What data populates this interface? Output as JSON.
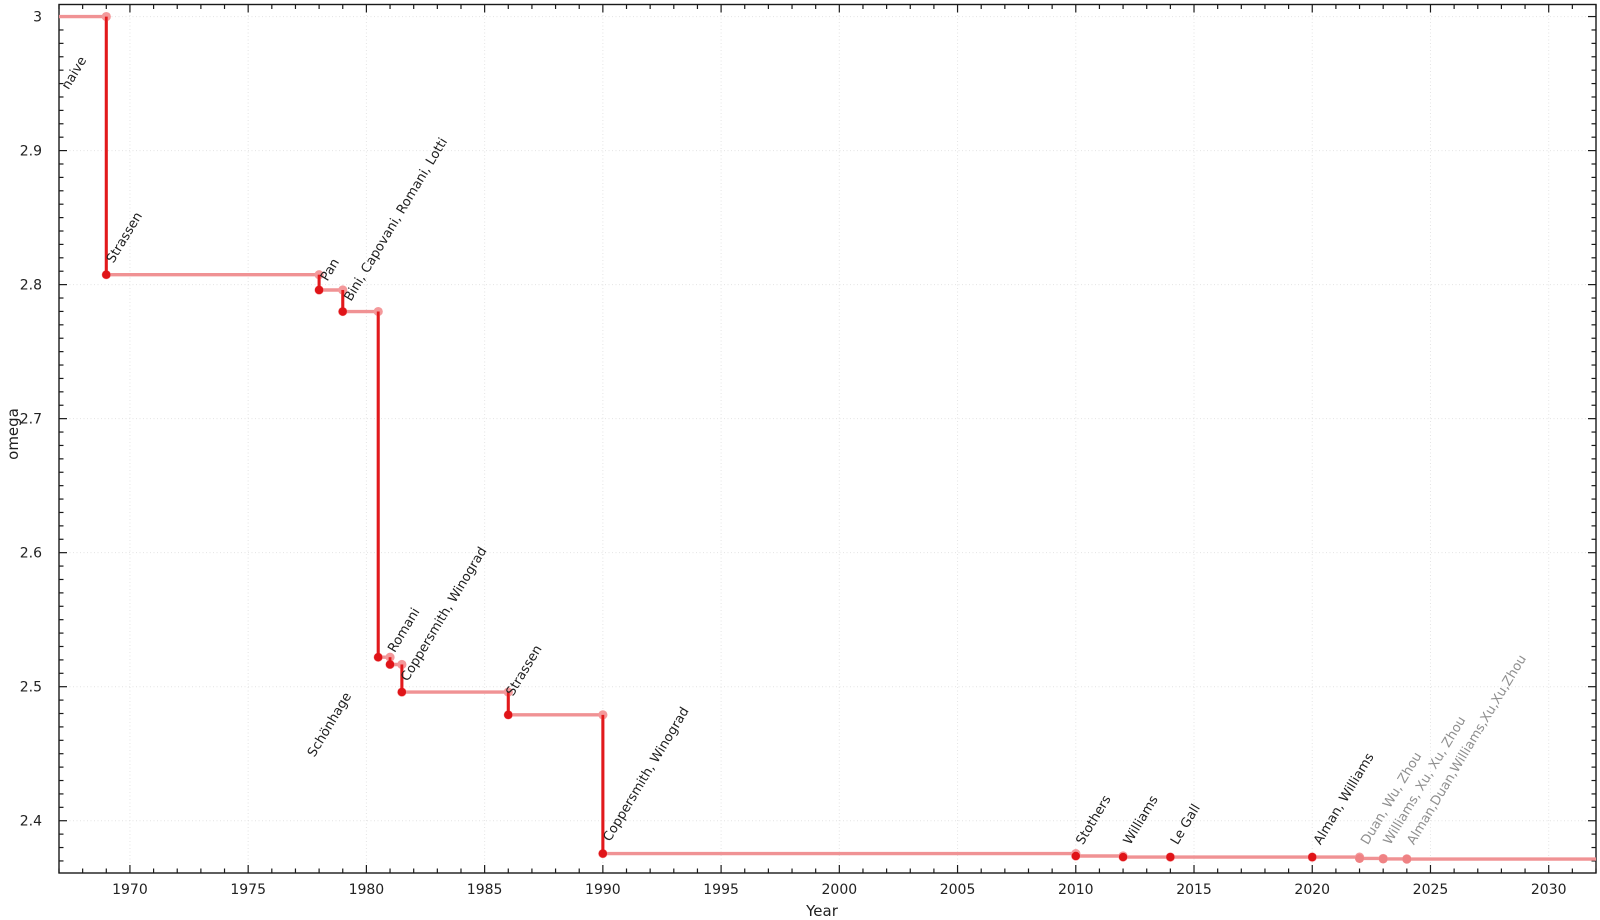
{
  "chart_data": {
    "type": "line",
    "subtype": "step-post",
    "title": "",
    "xlabel": "Year",
    "ylabel": "omega",
    "xlim": [
      1967,
      2032
    ],
    "ylim": [
      2.361,
      3.009
    ],
    "grid": "dotted-major",
    "legend": "none",
    "x_ticks": {
      "major_values": [
        1970,
        1975,
        1980,
        1985,
        1990,
        1995,
        2000,
        2005,
        2010,
        2015,
        2020,
        2025,
        2030
      ],
      "major_labels": [
        "1970",
        "1975",
        "1980",
        "1985",
        "1990",
        "1995",
        "2000",
        "2005",
        "2010",
        "2015",
        "2020",
        "2025",
        "2030"
      ],
      "minor_step": 1
    },
    "y_ticks": {
      "major_values": [
        2.4,
        2.5,
        2.6,
        2.7,
        2.8,
        2.9,
        3.0
      ],
      "major_labels": [
        "2.4",
        "2.5",
        "2.6",
        "2.7",
        "2.8",
        "2.9",
        "3"
      ],
      "minor_step": 0.01
    },
    "baseline": {
      "label": "naive",
      "omega": 3.0,
      "start_year": 1967,
      "label_pos": {
        "year": 1967.4,
        "omega": 2.945
      },
      "label_color": "dark"
    },
    "extend_to_year": 2032,
    "events": [
      {
        "year": 1969,
        "omega": 2.8074,
        "label": "Strassen",
        "label_pos": {
          "year": 1969.3,
          "omega": 2.8155
        },
        "label_color": "dark",
        "marker": "dark"
      },
      {
        "year": 1978,
        "omega": 2.796,
        "label": "Pan",
        "label_pos": {
          "year": 1978.35,
          "omega": 2.802
        },
        "label_color": "dark",
        "marker": "dark"
      },
      {
        "year": 1979,
        "omega": 2.7799,
        "label": "Bini, Capovani, Romani, Lotti",
        "label_pos": {
          "year": 1979.35,
          "omega": 2.787
        },
        "label_color": "dark",
        "marker": "dark"
      },
      {
        "year": 1980.5,
        "omega": 2.522,
        "label": "Schönhage",
        "label_pos": {
          "year": 1977.8,
          "omega": 2.447
        },
        "label_color": "dark",
        "marker": "dark"
      },
      {
        "year": 1981,
        "omega": 2.5166,
        "label": "Romani",
        "label_pos": {
          "year": 1981.2,
          "omega": 2.525
        },
        "label_color": "dark",
        "marker": "dark"
      },
      {
        "year": 1981.5,
        "omega": 2.496,
        "label": "Coppersmith, Winograd",
        "label_pos": {
          "year": 1981.75,
          "omega": 2.5035
        },
        "label_color": "dark",
        "marker": "dark"
      },
      {
        "year": 1986,
        "omega": 2.479,
        "label": "Strassen",
        "label_pos": {
          "year": 1986.2,
          "omega": 2.4925
        },
        "label_color": "dark",
        "marker": "dark"
      },
      {
        "year": 1990,
        "omega": 2.3755,
        "label": "Coppersmith, Winograd",
        "label_pos": {
          "year": 1990.3,
          "omega": 2.384
        },
        "label_color": "dark",
        "marker": "dark"
      },
      {
        "year": 2010,
        "omega": 2.3737,
        "label": "Stothers",
        "label_pos": {
          "year": 2010.3,
          "omega": 2.3815
        },
        "label_color": "dark",
        "marker": "dark"
      },
      {
        "year": 2012,
        "omega": 2.3729,
        "label": "Williams",
        "label_pos": {
          "year": 2012.3,
          "omega": 2.3815
        },
        "label_color": "dark",
        "marker": "dark"
      },
      {
        "year": 2014,
        "omega": 2.37287,
        "label": "Le Gall",
        "label_pos": {
          "year": 2014.3,
          "omega": 2.3815
        },
        "label_color": "dark",
        "marker": "dark"
      },
      {
        "year": 2020,
        "omega": 2.37286,
        "label": "Alman, Williams",
        "label_pos": {
          "year": 2020.35,
          "omega": 2.3815
        },
        "label_color": "dark",
        "marker": "dark"
      },
      {
        "year": 2022,
        "omega": 2.37187,
        "label": "Duan, Wu, Zhou",
        "label_pos": {
          "year": 2022.35,
          "omega": 2.3815
        },
        "label_color": "gray",
        "marker": "light"
      },
      {
        "year": 2023,
        "omega": 2.37155,
        "label": "Williams, Xu, Xu, Zhou",
        "label_pos": {
          "year": 2023.3,
          "omega": 2.3815
        },
        "label_color": "gray",
        "marker": "light"
      },
      {
        "year": 2024,
        "omega": 2.37134,
        "label": "Alman,Duan,Williams,Xu,Xu,Zhou",
        "label_pos": {
          "year": 2024.3,
          "omega": 2.3815
        },
        "label_color": "gray",
        "marker": "light"
      }
    ],
    "colors": {
      "step_line": "#f09294",
      "step_marker": "#f4999b",
      "drop_line": "#e2191c",
      "event_marker_dark": "#e01418",
      "event_marker_light": "#ef8284",
      "label_dark": "#1f1f1f",
      "label_gray": "#8f8f8f",
      "grid": "#e4e4e4",
      "axis": "#1a1a1a",
      "tick_label": "#222222"
    }
  }
}
